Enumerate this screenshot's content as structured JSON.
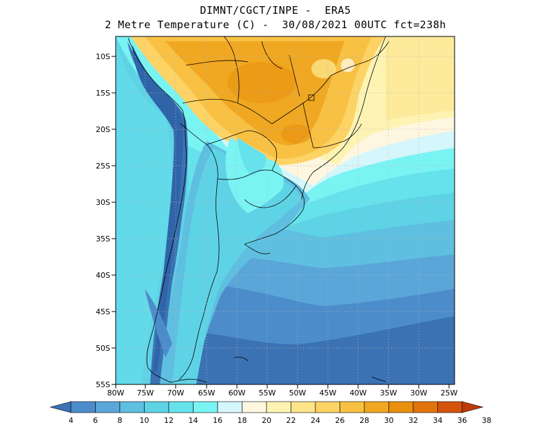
{
  "header": {
    "line1": "DIMNT/CGCT/INPE -  ERA5",
    "line2": "2 Metre Temperature (C) -  30/08/2021 00UTC fct=238h"
  },
  "map": {
    "lat_labels": [
      "10S",
      "15S",
      "20S",
      "25S",
      "30S",
      "35S",
      "40S",
      "45S",
      "50S",
      "55S"
    ],
    "lon_labels": [
      "80W",
      "75W",
      "70W",
      "65W",
      "60W",
      "55W",
      "50W",
      "45W",
      "40W",
      "35W",
      "30W",
      "25W"
    ],
    "extent": {
      "lon": [
        -80,
        -25
      ],
      "lat": [
        -55,
        -7
      ]
    },
    "grid": "dotted"
  },
  "colorbar": {
    "levels": [
      "4",
      "6",
      "8",
      "10",
      "12",
      "14",
      "16",
      "18",
      "20",
      "22",
      "24",
      "26",
      "28",
      "30",
      "32",
      "34",
      "36",
      "38"
    ],
    "colors": [
      "#3a72b4",
      "#4c8ccb",
      "#5aa6d8",
      "#5fbfe0",
      "#5fd3e6",
      "#66e2ec",
      "#7af3f3",
      "#d5f6fb",
      "#fff6e0",
      "#fdf3b3",
      "#fde48a",
      "#fdd366",
      "#f8c143",
      "#f0a822",
      "#e9900f",
      "#e1740c",
      "#d4540c",
      "#bd3a0c"
    ]
  }
}
